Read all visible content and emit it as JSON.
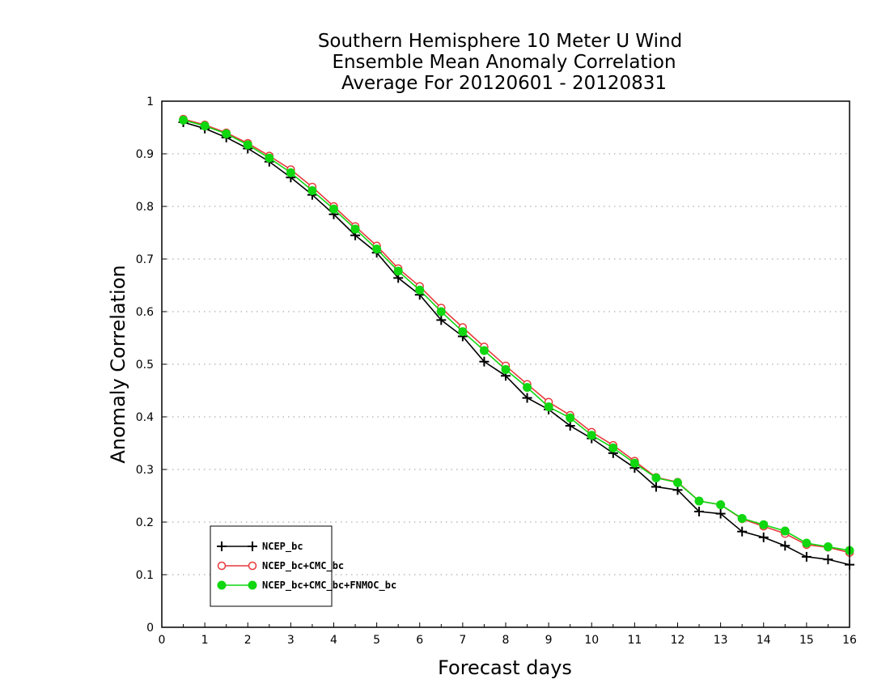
{
  "chart_data": {
    "type": "line",
    "title": [
      "Southern Hemisphere 10 Meter U Wind",
      "Ensemble Mean Anomaly Correlation",
      "Average For 20120601 - 20120831"
    ],
    "xlabel": "Forecast days",
    "ylabel": "Anomaly Correlation",
    "xlim": [
      0,
      16
    ],
    "ylim": [
      0,
      1
    ],
    "xticks": [
      "0",
      "1",
      "2",
      "3",
      "4",
      "5",
      "6",
      "7",
      "8",
      "9",
      "10",
      "11",
      "12",
      "13",
      "14",
      "15",
      "16"
    ],
    "yticks": [
      "0",
      "0.1",
      "0.2",
      "0.3",
      "0.4",
      "0.5",
      "0.6",
      "0.7",
      "0.8",
      "0.9",
      "1"
    ],
    "grid": "horizontal dotted",
    "legend_position": "bottom-left",
    "x": [
      0.5,
      1,
      1.5,
      2,
      2.5,
      3,
      3.5,
      4,
      4.5,
      5,
      5.5,
      6,
      6.5,
      7,
      7.5,
      8,
      8.5,
      9,
      9.5,
      10,
      10.5,
      11,
      11.5,
      12,
      12.5,
      13,
      13.5,
      14,
      14.5,
      15,
      15.5,
      16
    ],
    "series": [
      {
        "name": "NCEP_bc",
        "color": "#000000",
        "marker": "plus",
        "values": [
          0.96,
          0.948,
          0.931,
          0.91,
          0.885,
          0.855,
          0.822,
          0.785,
          0.745,
          0.712,
          0.664,
          0.632,
          0.584,
          0.553,
          0.505,
          0.478,
          0.436,
          0.414,
          0.383,
          0.359,
          0.331,
          0.303,
          0.267,
          0.261,
          0.22,
          0.216,
          0.182,
          0.171,
          0.155,
          0.134,
          0.129,
          0.119
        ]
      },
      {
        "name": "NCEP_bc+CMC_bc",
        "color": "#e8393c",
        "marker": "open-circle",
        "values": [
          0.966,
          0.955,
          0.94,
          0.92,
          0.896,
          0.87,
          0.837,
          0.8,
          0.762,
          0.725,
          0.682,
          0.648,
          0.607,
          0.57,
          0.533,
          0.497,
          0.462,
          0.428,
          0.403,
          0.371,
          0.346,
          0.316,
          0.285,
          0.276,
          0.24,
          0.233,
          0.206,
          0.192,
          0.178,
          0.157,
          0.152,
          0.142
        ]
      },
      {
        "name": "NCEP_bc+CMC_bc+FNMOC_bc",
        "color": "#11d711",
        "marker": "filled-circle",
        "values": [
          0.964,
          0.953,
          0.938,
          0.917,
          0.892,
          0.864,
          0.83,
          0.795,
          0.757,
          0.719,
          0.677,
          0.641,
          0.6,
          0.562,
          0.526,
          0.49,
          0.456,
          0.419,
          0.398,
          0.365,
          0.341,
          0.312,
          0.284,
          0.275,
          0.24,
          0.233,
          0.207,
          0.195,
          0.183,
          0.16,
          0.153,
          0.146
        ]
      }
    ]
  }
}
